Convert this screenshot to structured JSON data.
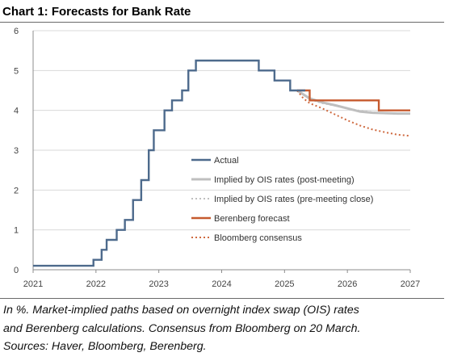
{
  "header": {
    "title": "Chart 1: Forecasts for Bank Rate"
  },
  "footnote": {
    "lines": [
      "In %. Market-implied paths based on overnight index swap (OIS) rates",
      "and Berenberg calculations. Consensus from Bloomberg on 20 March.",
      "Sources: Haver, Bloomberg, Berenberg."
    ]
  },
  "chart_data": {
    "type": "line",
    "title": "Chart 1: Forecasts for Bank Rate",
    "xlabel": "",
    "ylabel": "",
    "xlim": [
      2021,
      2027
    ],
    "ylim": [
      0,
      6
    ],
    "x_ticks": [
      "2021",
      "2022",
      "2023",
      "2024",
      "2025",
      "2026",
      "2027"
    ],
    "y_ticks": [
      "0",
      "1",
      "2",
      "3",
      "4",
      "5",
      "6"
    ],
    "grid": "horizontal",
    "legend_position": "center-right",
    "series": [
      {
        "name": "Actual",
        "color": "#4d6a8c",
        "style": "solid",
        "step": true,
        "x": [
          2021.0,
          2021.96,
          2022.09,
          2022.17,
          2022.33,
          2022.46,
          2022.59,
          2022.72,
          2022.84,
          2022.92,
          2023.09,
          2023.21,
          2023.37,
          2023.47,
          2023.59,
          2024.59,
          2024.84,
          2025.09,
          2025.33
        ],
        "y": [
          0.1,
          0.25,
          0.5,
          0.75,
          1.0,
          1.25,
          1.75,
          2.25,
          3.0,
          3.5,
          4.0,
          4.25,
          4.5,
          5.0,
          5.25,
          5.0,
          4.75,
          4.5,
          4.5
        ]
      },
      {
        "name": "Implied by OIS rates (post-meeting)",
        "color": "#bfbfbf",
        "style": "solid",
        "x": [
          2025.2,
          2025.4,
          2025.6,
          2025.8,
          2026.0,
          2026.2,
          2026.4,
          2026.6,
          2026.8,
          2027.0
        ],
        "y": [
          4.5,
          4.3,
          4.2,
          4.13,
          4.05,
          3.97,
          3.94,
          3.93,
          3.92,
          3.92
        ]
      },
      {
        "name": "Implied by OIS rates (pre-meeting close)",
        "color": "#bfbfbf",
        "style": "dotted",
        "x": [
          2025.2,
          2025.4,
          2025.6,
          2025.8,
          2026.0,
          2026.2,
          2026.4,
          2026.6,
          2026.8,
          2027.0
        ],
        "y": [
          4.5,
          4.28,
          4.18,
          4.12,
          4.05,
          3.99,
          3.95,
          3.93,
          3.92,
          3.91
        ]
      },
      {
        "name": "Berenberg forecast",
        "color": "#c65a2e",
        "style": "solid",
        "step": true,
        "x": [
          2025.2,
          2025.4,
          2025.5,
          2026.5,
          2027.0
        ],
        "y": [
          4.5,
          4.25,
          4.25,
          4.0,
          4.0
        ]
      },
      {
        "name": "Bloomberg consensus",
        "color": "#cf6a40",
        "style": "dotted",
        "x": [
          2025.2,
          2025.3,
          2025.4,
          2025.6,
          2025.8,
          2026.0,
          2026.2,
          2026.4,
          2026.6,
          2026.8,
          2027.0
        ],
        "y": [
          4.5,
          4.3,
          4.18,
          4.05,
          3.9,
          3.75,
          3.62,
          3.52,
          3.45,
          3.39,
          3.36
        ]
      }
    ]
  }
}
